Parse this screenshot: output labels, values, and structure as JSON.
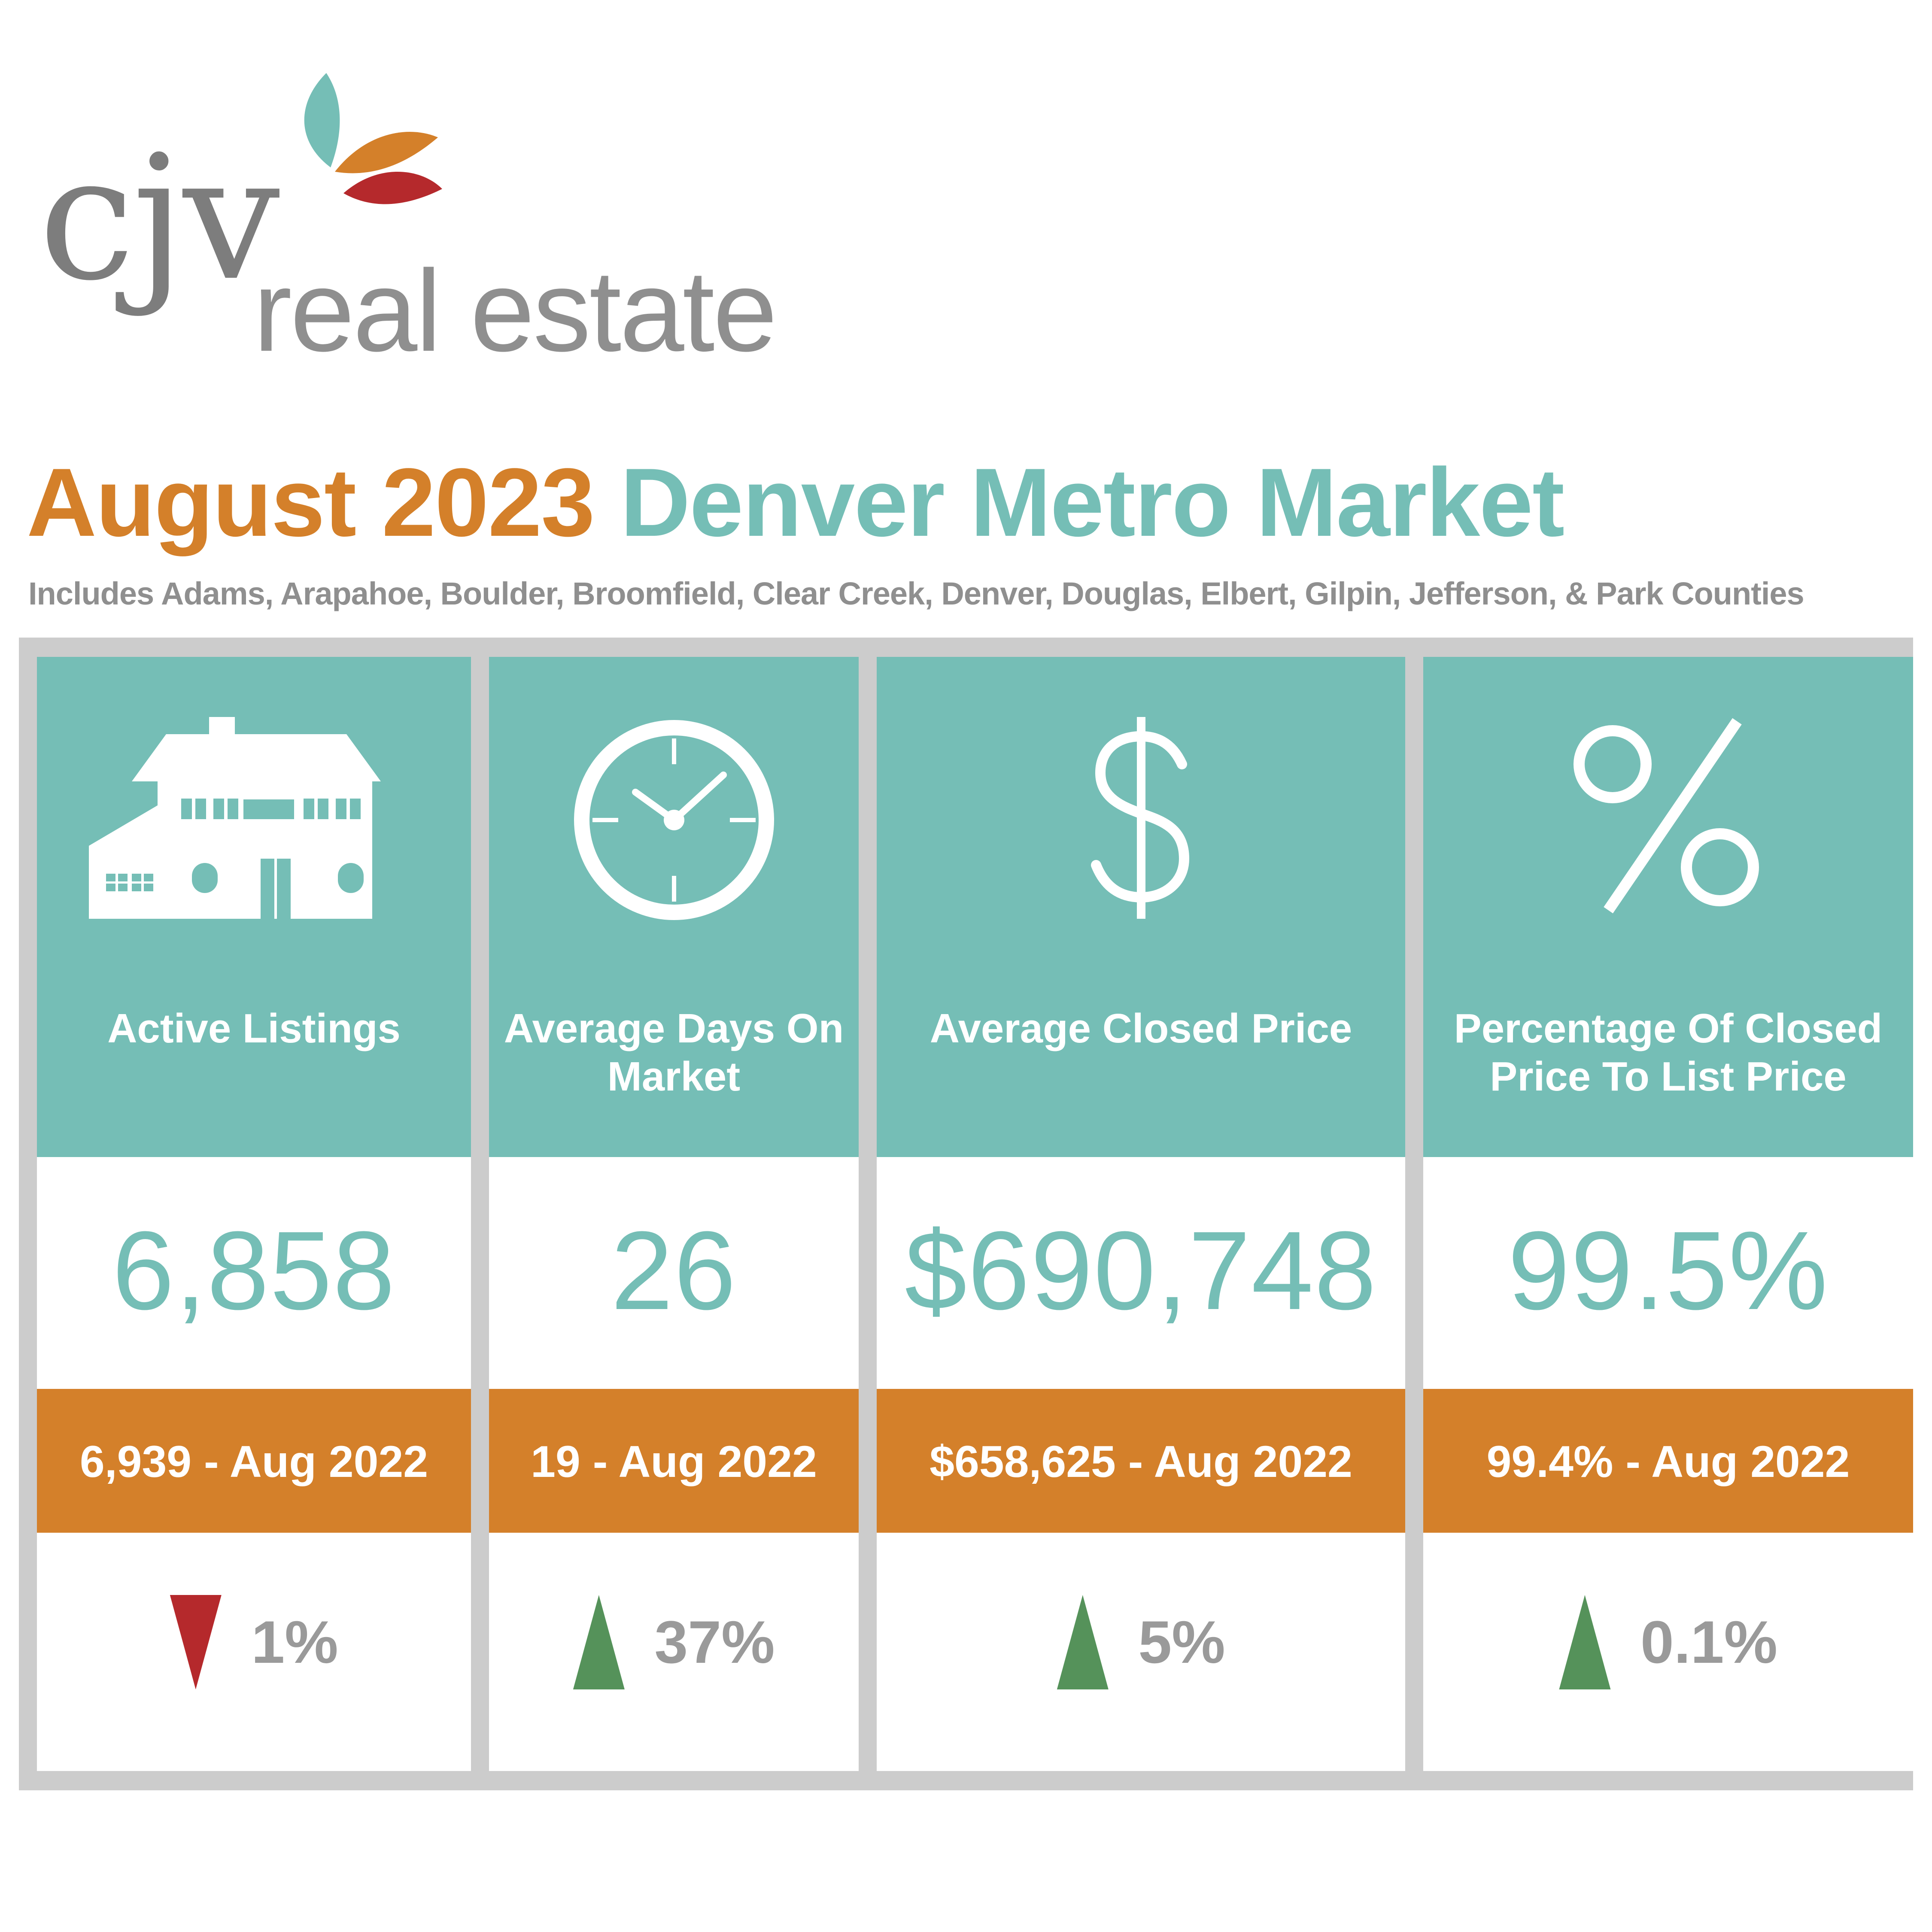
{
  "brand": {
    "logo_mark": "cjv",
    "logo_text": "real estate",
    "colors": {
      "teal": "#75beb6",
      "orange": "#d4802a",
      "red": "#b5292c",
      "gray": "#8f8f8f"
    }
  },
  "header": {
    "title_month": "August 2023",
    "title_region": "Denver Metro Market",
    "subtitle": "Includes Adams, Arapahoe, Boulder, Broomfield, Clear Creek, Denver, Douglas, Elbert, Gilpin, Jefferson, & Park Counties"
  },
  "metrics": [
    {
      "icon": "house-icon",
      "label": "Active Listings",
      "value": "6,858",
      "prior": "6,939 - Aug 2022",
      "direction": "down",
      "arrow_color": "#b5292c",
      "change": "1%"
    },
    {
      "icon": "clock-icon",
      "label": "Average Days On Market",
      "value": "26",
      "prior": "19 - Aug 2022",
      "direction": "up",
      "arrow_color": "#55925a",
      "change": "37%"
    },
    {
      "icon": "dollar-icon",
      "label": "Average Closed Price",
      "value": "$690,748",
      "prior": "$658,625 - Aug 2022",
      "direction": "up",
      "arrow_color": "#55925a",
      "change": "5%"
    },
    {
      "icon": "percent-icon",
      "label": "Percentage Of Closed Price To List Price",
      "value": "99.5%",
      "prior": "99.4% - Aug 2022",
      "direction": "up",
      "arrow_color": "#55925a",
      "change": "0.1%"
    }
  ]
}
